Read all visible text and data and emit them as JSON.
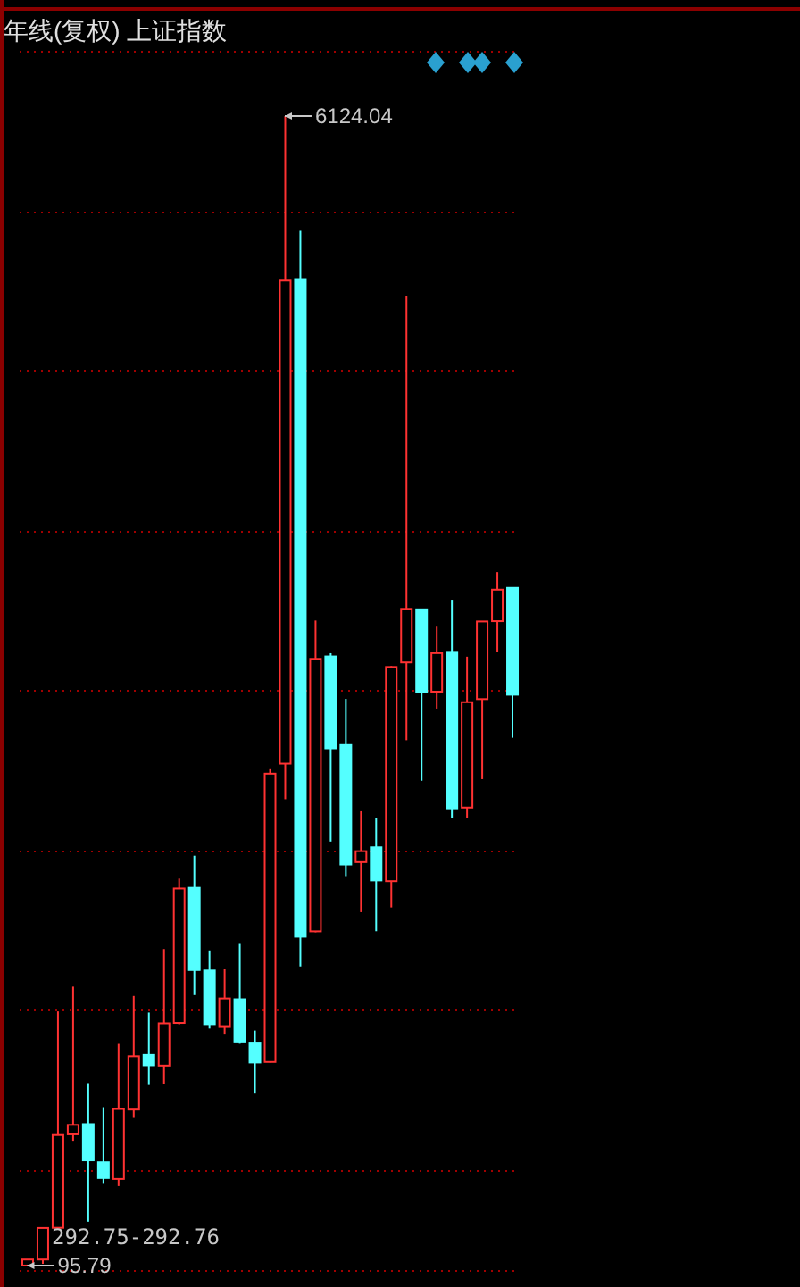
{
  "chart_data": {
    "type": "candlestick",
    "title": "年线(复权)  上证指数",
    "categories": [
      null,
      null,
      null,
      null,
      null,
      null,
      null,
      null,
      null,
      null,
      null,
      null,
      null,
      null,
      null,
      null,
      null,
      null,
      null,
      null,
      null,
      null,
      null,
      null,
      null,
      null,
      null,
      null,
      null,
      null,
      null,
      null,
      null
    ],
    "ohlc": [
      [
        96.05,
        127.61,
        95.79,
        127.61
      ],
      [
        127.61,
        292.75,
        104.96,
        292.75
      ],
      [
        293.74,
        1429.01,
        292.76,
        780.39
      ],
      [
        784.13,
        1558.95,
        750.46,
        833.8
      ],
      [
        837.7,
        1052.94,
        325.89,
        647.87
      ],
      [
        637.72,
        926.41,
        524.43,
        555.29
      ],
      [
        550.26,
        1258.69,
        512.83,
        917.02
      ],
      [
        914.06,
        1510.18,
        870.18,
        1194.1
      ],
      [
        1200.95,
        1422.98,
        1043.02,
        1146.7
      ],
      [
        1144.89,
        1756.18,
        1047.83,
        1366.58
      ],
      [
        1368.69,
        2125.72,
        1361.21,
        2073.48
      ],
      [
        2077.08,
        2245.44,
        1514.86,
        1645.97
      ],
      [
        1643.49,
        1748.89,
        1339.2,
        1357.65
      ],
      [
        1347.43,
        1649.6,
        1307.4,
        1497.04
      ],
      [
        1492.72,
        1783.01,
        1259.43,
        1266.5
      ],
      [
        1260.78,
        1328.53,
        998.23,
        1161.06
      ],
      [
        1163.88,
        2698.9,
        1161.91,
        2675.47
      ],
      [
        2728.19,
        6124.04,
        2541.52,
        5261.56
      ],
      [
        5265,
        5522.78,
        1664.93,
        1820.81
      ],
      [
        1849.02,
        3478.01,
        1844.09,
        3277.14
      ],
      [
        3289.75,
        3306.75,
        2319.74,
        2808.08
      ],
      [
        2825.33,
        3067.46,
        2134.02,
        2199.42
      ],
      [
        2212,
        2478.38,
        1949.46,
        2269.13
      ],
      [
        2289.51,
        2444.8,
        1849.65,
        2115.98
      ],
      [
        2112.13,
        3239.36,
        1974.38,
        3234.68
      ],
      [
        3258.63,
        5178.19,
        2850.71,
        3539.18
      ],
      [
        3536.59,
        3538.69,
        2638.3,
        3103.64
      ],
      [
        3105.31,
        3450.49,
        3016.53,
        3307.17
      ],
      [
        3314.03,
        3587.03,
        2440.91,
        2493.9
      ],
      [
        2497.88,
        3288.45,
        2440.91,
        3050.12
      ],
      [
        3066.34,
        3474.92,
        2646.8,
        3473.07
      ],
      [
        3474.68,
        3731.69,
        3312.72,
        3639.78
      ],
      [
        3649.15,
        3651.89,
        2863.65,
        3089.26
      ]
    ],
    "colors": [
      "#ff3232",
      "#ff3232",
      "#ff3232",
      "#ff3232",
      "#54ffff",
      "#54ffff",
      "#ff3232",
      "#ff3232",
      "#54ffff",
      "#ff3232",
      "#ff3232",
      "#54ffff",
      "#54ffff",
      "#ff3232",
      "#54ffff",
      "#54ffff",
      "#ff3232",
      "#ff3232",
      "#54ffff",
      "#ff3232",
      "#54ffff",
      "#54ffff",
      "#ff3232",
      "#54ffff",
      "#ff3232",
      "#ff3232",
      "#54ffff",
      "#ff3232",
      "#54ffff",
      "#ff3232",
      "#ff3232",
      "#ff3232",
      "#54ffff"
    ],
    "ylim": [
      67.7,
      6461
    ],
    "yticks": [
      {
        "value": 592,
        "label": null
      },
      {
        "value": 1434,
        "label": null
      },
      {
        "value": 2267,
        "label": null
      },
      {
        "value": 3110,
        "label": null
      },
      {
        "value": 3943,
        "label": null
      },
      {
        "value": 4785,
        "label": null
      },
      {
        "value": 5619,
        "label": null
      },
      {
        "value": 6461,
        "label": null
      }
    ],
    "grid": "y",
    "annotations": [
      "6124.04",
      "95.79",
      "292.75-292.76"
    ]
  }
}
